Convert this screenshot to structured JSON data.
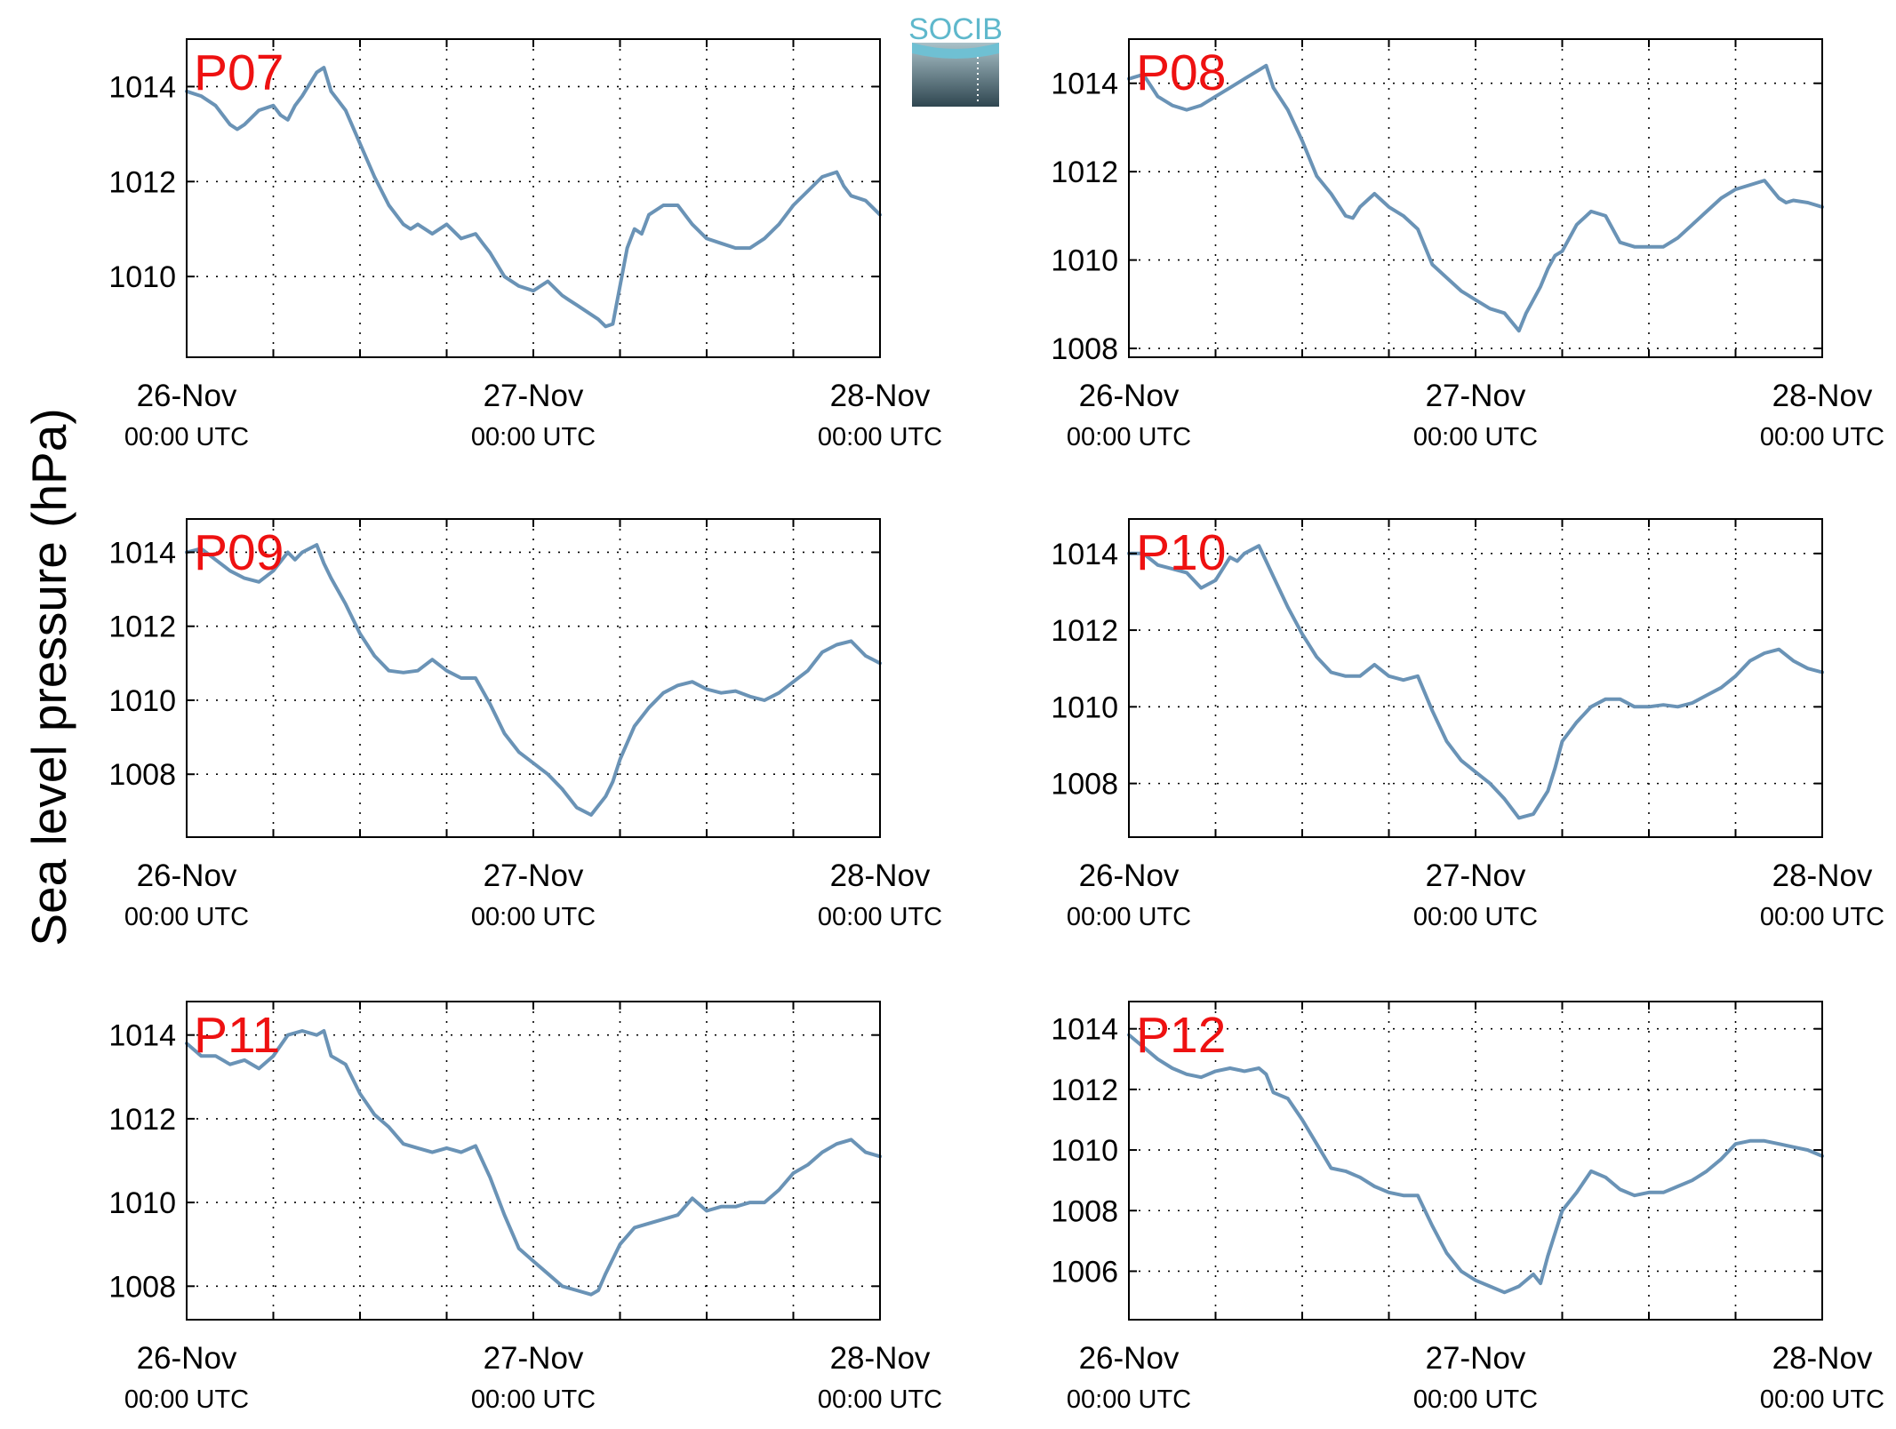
{
  "figure": {
    "ylabel": "Sea level pressure (hPa)",
    "logo": "SOCIB",
    "line_color": "#6a93b6",
    "station_label_color": "#ee1111"
  },
  "chart_data": [
    {
      "type": "line",
      "title": "P07",
      "x_unit": "hours since 26-Nov 00:00 UTC",
      "ylim": [
        1008.3,
        1015
      ],
      "yticks": [
        1010,
        1012,
        1014
      ],
      "xticks": [
        {
          "x": 0,
          "date": "26-Nov",
          "time": "00:00 UTC"
        },
        {
          "x": 24,
          "date": "27-Nov",
          "time": "00:00 UTC"
        },
        {
          "x": 48,
          "date": "28-Nov",
          "time": "00:00 UTC"
        }
      ],
      "grid": true,
      "series": [
        {
          "x": [
            0,
            1,
            2,
            3,
            3.5,
            4,
            5,
            6,
            6.5,
            7,
            7.5,
            8,
            9,
            9.5,
            10,
            11,
            12,
            13,
            14,
            15,
            15.5,
            16,
            17,
            18,
            19,
            20,
            20.5,
            21,
            22,
            23,
            24,
            25,
            26,
            26.5,
            27,
            27.5,
            28,
            28.5,
            29,
            29.5,
            30,
            30.5,
            31,
            31.5,
            32,
            33,
            34,
            35,
            36,
            37,
            38,
            39,
            40,
            41,
            42,
            43,
            44,
            45,
            45.5,
            46,
            47,
            48
          ],
          "y": [
            1013.9,
            1013.8,
            1013.6,
            1013.2,
            1013.1,
            1013.2,
            1013.5,
            1013.6,
            1013.4,
            1013.3,
            1013.6,
            1013.8,
            1014.3,
            1014.4,
            1013.9,
            1013.5,
            1012.8,
            1012.1,
            1011.5,
            1011.1,
            1011.0,
            1011.1,
            1010.9,
            1011.1,
            1010.8,
            1010.9,
            1010.7,
            1010.5,
            1010.0,
            1009.8,
            1009.7,
            1009.9,
            1009.6,
            1009.5,
            1009.4,
            1009.3,
            1009.2,
            1009.1,
            1008.95,
            1009.0,
            1009.8,
            1010.6,
            1011.0,
            1010.9,
            1011.3,
            1011.5,
            1011.5,
            1011.1,
            1010.8,
            1010.7,
            1010.6,
            1010.6,
            1010.8,
            1011.1,
            1011.5,
            1011.8,
            1012.1,
            1012.2,
            1011.9,
            1011.7,
            1011.6,
            1011.3
          ]
        }
      ]
    },
    {
      "type": "line",
      "title": "P08",
      "x_unit": "hours since 26-Nov 00:00 UTC",
      "ylim": [
        1007.8,
        1015
      ],
      "yticks": [
        1008,
        1010,
        1012,
        1014
      ],
      "xticks": [
        {
          "x": 0,
          "date": "26-Nov",
          "time": "00:00 UTC"
        },
        {
          "x": 24,
          "date": "27-Nov",
          "time": "00:00 UTC"
        },
        {
          "x": 48,
          "date": "28-Nov",
          "time": "00:00 UTC"
        }
      ],
      "grid": true,
      "series": [
        {
          "x": [
            0,
            1,
            2,
            3,
            4,
            5,
            6,
            7,
            8,
            9,
            9.5,
            10,
            11,
            12,
            13,
            14,
            15,
            15.5,
            16,
            17,
            18,
            19,
            20,
            21,
            22,
            23,
            24,
            25,
            26,
            26.5,
            27,
            27.5,
            28,
            28.5,
            29,
            29.5,
            30,
            31,
            32,
            33,
            34,
            35,
            36,
            37,
            38,
            39,
            40,
            41,
            42,
            43,
            44,
            45,
            45.5,
            46,
            47,
            48
          ],
          "y": [
            1014.1,
            1014.2,
            1013.7,
            1013.5,
            1013.4,
            1013.5,
            1013.7,
            1013.9,
            1014.1,
            1014.3,
            1014.4,
            1013.9,
            1013.4,
            1012.7,
            1011.9,
            1011.5,
            1011.0,
            1010.95,
            1011.2,
            1011.5,
            1011.2,
            1011.0,
            1010.7,
            1009.9,
            1009.6,
            1009.3,
            1009.1,
            1008.9,
            1008.8,
            1008.6,
            1008.4,
            1008.8,
            1009.1,
            1009.4,
            1009.8,
            1010.1,
            1010.2,
            1010.8,
            1011.1,
            1011.0,
            1010.4,
            1010.3,
            1010.3,
            1010.3,
            1010.5,
            1010.8,
            1011.1,
            1011.4,
            1011.6,
            1011.7,
            1011.8,
            1011.4,
            1011.3,
            1011.35,
            1011.3,
            1011.2
          ]
        }
      ]
    },
    {
      "type": "line",
      "title": "P09",
      "x_unit": "hours since 26-Nov 00:00 UTC",
      "ylim": [
        1006.3,
        1014.9
      ],
      "yticks": [
        1008,
        1010,
        1012,
        1014
      ],
      "xticks": [
        {
          "x": 0,
          "date": "26-Nov",
          "time": "00:00 UTC"
        },
        {
          "x": 24,
          "date": "27-Nov",
          "time": "00:00 UTC"
        },
        {
          "x": 48,
          "date": "28-Nov",
          "time": "00:00 UTC"
        }
      ],
      "grid": true,
      "series": [
        {
          "x": [
            0,
            1,
            2,
            3,
            4,
            5,
            6,
            7,
            7.5,
            8,
            9,
            9.5,
            10,
            11,
            12,
            13,
            14,
            15,
            16,
            17,
            18,
            19,
            20,
            21,
            22,
            23,
            24,
            25,
            26,
            27,
            28,
            29,
            29.5,
            30,
            31,
            32,
            33,
            34,
            35,
            36,
            37,
            38,
            39,
            40,
            41,
            42,
            43,
            44,
            45,
            46,
            47,
            48
          ],
          "y": [
            1014.0,
            1014.1,
            1013.8,
            1013.5,
            1013.3,
            1013.2,
            1013.5,
            1014.0,
            1013.8,
            1014.0,
            1014.2,
            1013.7,
            1013.3,
            1012.6,
            1011.8,
            1011.2,
            1010.8,
            1010.75,
            1010.8,
            1011.1,
            1010.8,
            1010.6,
            1010.6,
            1009.9,
            1009.1,
            1008.6,
            1008.3,
            1008.0,
            1007.6,
            1007.1,
            1006.9,
            1007.4,
            1007.8,
            1008.4,
            1009.3,
            1009.8,
            1010.2,
            1010.4,
            1010.5,
            1010.3,
            1010.2,
            1010.25,
            1010.1,
            1010.0,
            1010.2,
            1010.5,
            1010.8,
            1011.3,
            1011.5,
            1011.6,
            1011.2,
            1011.0
          ]
        }
      ]
    },
    {
      "type": "line",
      "title": "P10",
      "x_unit": "hours since 26-Nov 00:00 UTC",
      "ylim": [
        1006.6,
        1014.9
      ],
      "yticks": [
        1008,
        1010,
        1012,
        1014
      ],
      "xticks": [
        {
          "x": 0,
          "date": "26-Nov",
          "time": "00:00 UTC"
        },
        {
          "x": 24,
          "date": "27-Nov",
          "time": "00:00 UTC"
        },
        {
          "x": 48,
          "date": "28-Nov",
          "time": "00:00 UTC"
        }
      ],
      "grid": true,
      "series": [
        {
          "x": [
            0,
            1,
            2,
            3,
            4,
            5,
            6,
            7,
            7.5,
            8,
            9,
            9.5,
            10,
            11,
            12,
            13,
            14,
            15,
            16,
            17,
            18,
            19,
            20,
            21,
            22,
            23,
            24,
            25,
            26,
            27,
            28,
            29,
            29.5,
            30,
            31,
            32,
            33,
            34,
            35,
            36,
            37,
            38,
            39,
            40,
            41,
            42,
            43,
            44,
            45,
            46,
            47,
            48
          ],
          "y": [
            1014.0,
            1014.0,
            1013.7,
            1013.6,
            1013.5,
            1013.1,
            1013.3,
            1013.9,
            1013.8,
            1014.0,
            1014.2,
            1013.8,
            1013.4,
            1012.6,
            1011.9,
            1011.3,
            1010.9,
            1010.8,
            1010.8,
            1011.1,
            1010.8,
            1010.7,
            1010.8,
            1009.9,
            1009.1,
            1008.6,
            1008.3,
            1008.0,
            1007.6,
            1007.1,
            1007.2,
            1007.8,
            1008.4,
            1009.1,
            1009.6,
            1010.0,
            1010.2,
            1010.2,
            1010.0,
            1010.0,
            1010.05,
            1010.0,
            1010.1,
            1010.3,
            1010.5,
            1010.8,
            1011.2,
            1011.4,
            1011.5,
            1011.2,
            1011.0,
            1010.9
          ]
        }
      ]
    },
    {
      "type": "line",
      "title": "P11",
      "x_unit": "hours since 26-Nov 00:00 UTC",
      "ylim": [
        1007.2,
        1014.8
      ],
      "yticks": [
        1008,
        1010,
        1012,
        1014
      ],
      "xticks": [
        {
          "x": 0,
          "date": "26-Nov",
          "time": "00:00 UTC"
        },
        {
          "x": 24,
          "date": "27-Nov",
          "time": "00:00 UTC"
        },
        {
          "x": 48,
          "date": "28-Nov",
          "time": "00:00 UTC"
        }
      ],
      "grid": true,
      "series": [
        {
          "x": [
            0,
            1,
            2,
            3,
            4,
            5,
            6,
            7,
            8,
            9,
            9.5,
            10,
            11,
            12,
            13,
            14,
            15,
            16,
            17,
            18,
            19,
            20,
            21,
            22,
            23,
            24,
            25,
            26,
            27,
            28,
            28.5,
            29,
            30,
            31,
            32,
            33,
            34,
            35,
            36,
            37,
            38,
            39,
            40,
            41,
            42,
            43,
            44,
            45,
            46,
            47,
            48
          ],
          "y": [
            1013.8,
            1013.5,
            1013.5,
            1013.3,
            1013.4,
            1013.2,
            1013.5,
            1014.0,
            1014.1,
            1014.0,
            1014.1,
            1013.5,
            1013.3,
            1012.6,
            1012.1,
            1011.8,
            1011.4,
            1011.3,
            1011.2,
            1011.3,
            1011.2,
            1011.35,
            1010.6,
            1009.7,
            1008.9,
            1008.6,
            1008.3,
            1008.0,
            1007.9,
            1007.8,
            1007.9,
            1008.3,
            1009.0,
            1009.4,
            1009.5,
            1009.6,
            1009.7,
            1010.1,
            1009.8,
            1009.9,
            1009.9,
            1010.0,
            1010.0,
            1010.3,
            1010.7,
            1010.9,
            1011.2,
            1011.4,
            1011.5,
            1011.2,
            1011.1
          ]
        }
      ]
    },
    {
      "type": "line",
      "title": "P12",
      "x_unit": "hours since 26-Nov 00:00 UTC",
      "ylim": [
        1004.4,
        1014.9
      ],
      "yticks": [
        1006,
        1008,
        1010,
        1012,
        1014
      ],
      "xticks": [
        {
          "x": 0,
          "date": "26-Nov",
          "time": "00:00 UTC"
        },
        {
          "x": 24,
          "date": "27-Nov",
          "time": "00:00 UTC"
        },
        {
          "x": 48,
          "date": "28-Nov",
          "time": "00:00 UTC"
        }
      ],
      "grid": true,
      "series": [
        {
          "x": [
            0,
            1,
            2,
            3,
            4,
            5,
            6,
            7,
            8,
            9,
            9.5,
            10,
            11,
            12,
            13,
            14,
            15,
            16,
            17,
            18,
            19,
            20,
            21,
            22,
            23,
            24,
            25,
            26,
            27,
            28,
            28.5,
            29,
            30,
            31,
            32,
            33,
            34,
            35,
            36,
            37,
            38,
            39,
            40,
            41,
            42,
            43,
            44,
            45,
            46,
            47,
            48
          ],
          "y": [
            1013.8,
            1013.4,
            1013.0,
            1012.7,
            1012.5,
            1012.4,
            1012.6,
            1012.7,
            1012.6,
            1012.7,
            1012.5,
            1011.9,
            1011.7,
            1011.0,
            1010.2,
            1009.4,
            1009.3,
            1009.1,
            1008.8,
            1008.6,
            1008.5,
            1008.5,
            1007.5,
            1006.6,
            1006.0,
            1005.7,
            1005.5,
            1005.3,
            1005.5,
            1005.9,
            1005.6,
            1006.5,
            1008.0,
            1008.6,
            1009.3,
            1009.1,
            1008.7,
            1008.5,
            1008.6,
            1008.6,
            1008.8,
            1009.0,
            1009.3,
            1009.7,
            1010.2,
            1010.3,
            1010.3,
            1010.2,
            1010.1,
            1010.0,
            1009.8
          ]
        }
      ]
    }
  ]
}
